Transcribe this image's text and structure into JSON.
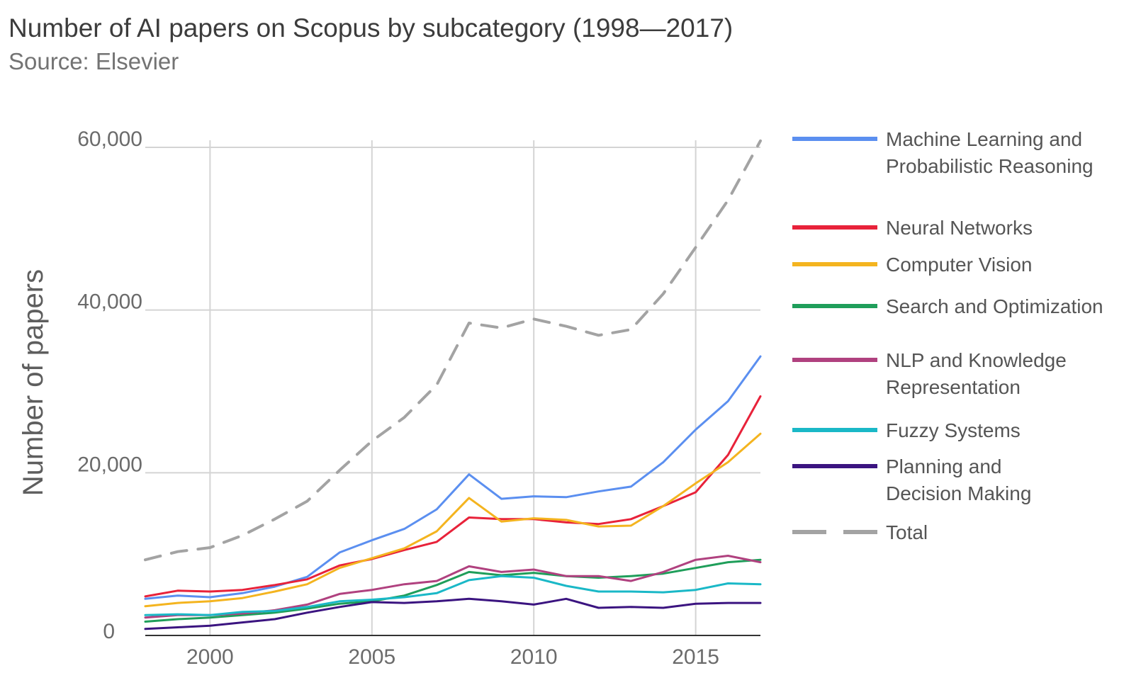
{
  "chart_data": {
    "type": "line",
    "title": "Number of AI papers on Scopus by subcategory (1998—2017)",
    "subtitle": "Source: Elsevier",
    "xlabel": "",
    "ylabel": "Number of papers",
    "x": [
      1998,
      1999,
      2000,
      2001,
      2002,
      2003,
      2004,
      2005,
      2006,
      2007,
      2008,
      2009,
      2010,
      2011,
      2012,
      2013,
      2014,
      2015,
      2016,
      2017
    ],
    "xlim": [
      1998,
      2017
    ],
    "ylim": [
      0,
      60000
    ],
    "xticks": [
      2000,
      2005,
      2010,
      2015
    ],
    "xtick_labels": [
      "2000",
      "2005",
      "2010",
      "2015"
    ],
    "yticks": [
      0,
      20000,
      40000,
      60000
    ],
    "ytick_labels": [
      "0",
      "20,000",
      "40,000",
      "60,000"
    ],
    "grid": true,
    "legend_position": "right",
    "series": [
      {
        "name": "Machine Learning and Probabilistic Reasoning",
        "legend_lines": [
          "Machine Learning and",
          "Probabilistic Reasoning"
        ],
        "color": "#5b8ff0",
        "dashed": false,
        "values": [
          4500,
          4900,
          4700,
          5200,
          6000,
          7200,
          10200,
          11700,
          13100,
          15500,
          19800,
          16800,
          17100,
          17000,
          17700,
          18300,
          21300,
          25300,
          28800,
          34300
        ]
      },
      {
        "name": "Neural Networks",
        "legend_lines": [
          "Neural Networks"
        ],
        "color": "#e8223a",
        "dashed": false,
        "values": [
          4800,
          5500,
          5400,
          5600,
          6200,
          6900,
          8600,
          9400,
          10500,
          11500,
          14500,
          14300,
          14300,
          13900,
          13700,
          14300,
          15900,
          17600,
          22200,
          29400
        ]
      },
      {
        "name": "Computer Vision",
        "legend_lines": [
          "Computer Vision"
        ],
        "color": "#f4b41f",
        "dashed": false,
        "values": [
          3600,
          4000,
          4200,
          4600,
          5400,
          6300,
          8300,
          9500,
          10700,
          12800,
          16900,
          14000,
          14400,
          14200,
          13400,
          13500,
          15900,
          18700,
          21300,
          24800
        ]
      },
      {
        "name": "Search and Optimization",
        "legend_lines": [
          "Search and Optimization"
        ],
        "color": "#1f9e5a",
        "dashed": false,
        "values": [
          1700,
          2000,
          2200,
          2500,
          2800,
          3300,
          3900,
          4200,
          4900,
          6200,
          7800,
          7400,
          7700,
          7300,
          7100,
          7300,
          7600,
          8300,
          9000,
          9300
        ]
      },
      {
        "name": "NLP and Knowledge Representation",
        "legend_lines": [
          "NLP and Knowledge",
          "Representation"
        ],
        "color": "#b0417f",
        "dashed": false,
        "values": [
          2200,
          2500,
          2500,
          2700,
          3100,
          3800,
          5100,
          5600,
          6300,
          6700,
          8500,
          7800,
          8100,
          7300,
          7300,
          6700,
          7800,
          9300,
          9800,
          9000
        ]
      },
      {
        "name": "Fuzzy Systems",
        "legend_lines": [
          "Fuzzy Systems"
        ],
        "color": "#1ab8c7",
        "dashed": false,
        "values": [
          2500,
          2600,
          2500,
          2900,
          3000,
          3500,
          4200,
          4400,
          4700,
          5200,
          6800,
          7300,
          7100,
          6100,
          5400,
          5400,
          5300,
          5600,
          6400,
          6300
        ]
      },
      {
        "name": "Planning and Decision Making",
        "legend_lines": [
          "Planning and",
          "Decision Making"
        ],
        "color": "#3b1480",
        "dashed": false,
        "values": [
          800,
          1000,
          1200,
          1600,
          2000,
          2800,
          3500,
          4100,
          4000,
          4200,
          4500,
          4200,
          3800,
          4500,
          3400,
          3500,
          3400,
          3900,
          4000,
          4000
        ]
      },
      {
        "name": "Total",
        "legend_lines": [
          "Total"
        ],
        "color": "#a3a3a3",
        "dashed": true,
        "values": [
          9300,
          10300,
          10800,
          12300,
          14300,
          16500,
          20300,
          23900,
          26800,
          30800,
          38400,
          37800,
          38900,
          38000,
          36900,
          37600,
          42000,
          47700,
          53500,
          60800
        ]
      }
    ]
  }
}
